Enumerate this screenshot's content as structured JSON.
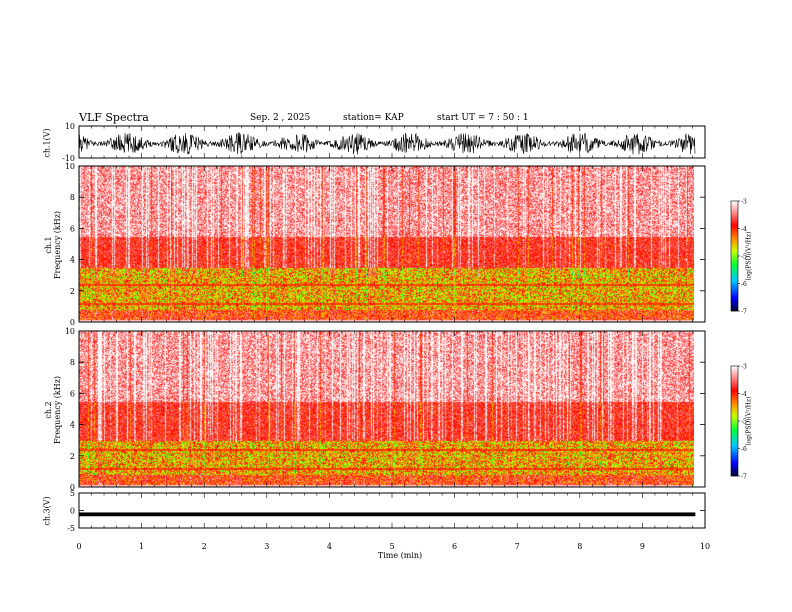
{
  "header": {
    "title": "VLF Spectra",
    "date": "Sep. 2 , 2025",
    "station": "station= KAP",
    "start": "start  UT =  7 : 50 : 1"
  },
  "chart_data": [
    {
      "type": "line",
      "name": "ch1 waveform",
      "ylabel": "ch.1(V)",
      "ylim": [
        -10,
        10
      ],
      "yticks": [
        "10",
        "-10"
      ],
      "xlim": [
        0,
        10
      ],
      "description_series": "dense noise signal between about -8 and 6 V"
    },
    {
      "type": "heatmap",
      "name": "ch1 spectrogram",
      "ylabel_line1": "ch.1",
      "ylabel_line2": "Frequency  (kHz)",
      "ylim": [
        0,
        10
      ],
      "yticks": [
        "0",
        "2",
        "4",
        "6",
        "8",
        "10"
      ],
      "xlim": [
        0,
        9.83
      ],
      "colorbar": {
        "label": "log(PSD)(V²/Hz)",
        "range": [
          -7,
          -3
        ],
        "ticks": [
          "-3",
          "-4",
          "-5",
          "-6",
          "-7"
        ]
      }
    },
    {
      "type": "heatmap",
      "name": "ch2 spectrogram",
      "ylabel_line1": "ch.2",
      "ylabel_line2": "Frequency  (kHz)",
      "ylim": [
        0,
        10
      ],
      "yticks": [
        "0",
        "2",
        "4",
        "6",
        "8",
        "10"
      ],
      "xlim": [
        0,
        9.83
      ],
      "colorbar": {
        "label": "log(PSD)(V²/Hz)",
        "range": [
          -7,
          -3
        ],
        "ticks": [
          "-3",
          "-4",
          "-5",
          "-6",
          "-7"
        ]
      }
    },
    {
      "type": "line",
      "name": "ch3 waveform",
      "ylabel": "ch.3(V)",
      "ylim": [
        -5,
        5
      ],
      "yticks": [
        "5",
        "0",
        "-5"
      ],
      "xlim": [
        0,
        10
      ],
      "description_series": "nearly constant near -1 V"
    }
  ],
  "xaxis": {
    "label": "Time  (min)",
    "range": [
      0,
      10
    ],
    "ticks": [
      "0",
      "1",
      "2",
      "3",
      "4",
      "5",
      "6",
      "7",
      "8",
      "9",
      "10"
    ]
  }
}
